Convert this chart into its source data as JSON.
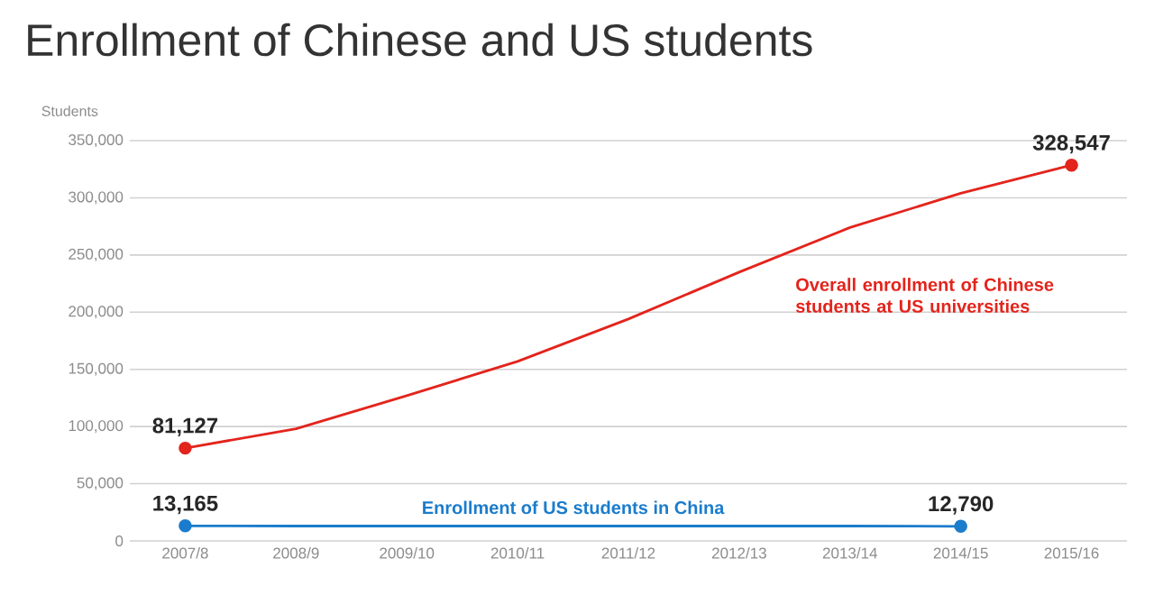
{
  "chart_data": {
    "type": "line",
    "title": "Enrollment of Chinese and US students",
    "ylabel": "Students",
    "categories": [
      "2007/8",
      "2008/9",
      "2009/10",
      "2010/11",
      "2011/12",
      "2012/13",
      "2013/14",
      "2014/15",
      "2015/16"
    ],
    "series": [
      {
        "name": "Overall enrollment of Chinese students at US universities",
        "color": "#e3241c",
        "values": [
          81127,
          98000,
          127000,
          157000,
          194000,
          235000,
          274000,
          304000,
          328547
        ],
        "value_labels": [
          "81,127",
          null,
          null,
          null,
          null,
          null,
          null,
          null,
          "328,547"
        ]
      },
      {
        "name": "Enrollment of US students in China",
        "color": "#1b7ccc",
        "values": [
          13165,
          13000,
          13000,
          13000,
          13000,
          13000,
          13000,
          12790,
          null
        ],
        "value_labels": [
          "13,165",
          null,
          null,
          null,
          null,
          null,
          null,
          "12,790",
          null
        ]
      }
    ],
    "ylim": [
      0,
      350000
    ],
    "yticks": [
      0,
      {
        "value": 50000,
        "label": "50,000"
      },
      {
        "value": 100000,
        "label": "100,000"
      },
      {
        "value": 150000,
        "label": "150,000"
      },
      {
        "value": 200000,
        "label": "200,000"
      },
      {
        "value": 250000,
        "label": "250,000"
      },
      {
        "value": 300000,
        "label": "300,000"
      },
      {
        "value": 350000,
        "label": "350,000"
      }
    ],
    "grid": "y",
    "line_style": "solid",
    "legend": false
  }
}
